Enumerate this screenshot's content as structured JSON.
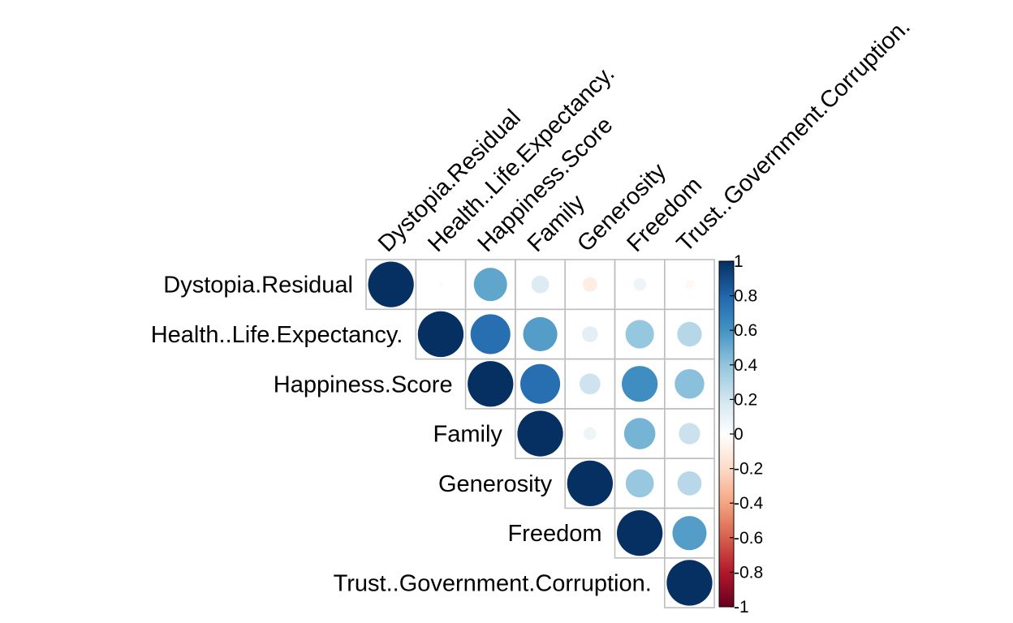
{
  "chart_data": {
    "type": "heatmap",
    "style": "corrplot-circle-upper",
    "variables": [
      "Dystopia.Residual",
      "Health..Life.Expectancy.",
      "Happiness.Score",
      "Family",
      "Generosity",
      "Freedom",
      "Trust..Government.Corruption."
    ],
    "matrix": [
      [
        1.0,
        0.02,
        0.53,
        0.15,
        -0.1,
        0.08,
        -0.04
      ],
      [
        0.02,
        1.0,
        0.76,
        0.56,
        0.12,
        0.39,
        0.29
      ],
      [
        0.53,
        0.76,
        1.0,
        0.76,
        0.21,
        0.62,
        0.42
      ],
      [
        0.15,
        0.56,
        0.76,
        1.0,
        0.08,
        0.47,
        0.22
      ],
      [
        -0.1,
        0.12,
        0.21,
        0.08,
        1.0,
        0.38,
        0.28
      ],
      [
        0.08,
        0.39,
        0.62,
        0.47,
        0.38,
        1.0,
        0.56
      ],
      [
        -0.04,
        0.29,
        0.42,
        0.22,
        0.28,
        0.56,
        1.0
      ]
    ],
    "color_scale": {
      "range": [
        -1,
        1
      ],
      "ticks": [
        "-1",
        "-0.8",
        "-0.6",
        "-0.4",
        "-0.2",
        "0",
        "0.2",
        "0.4",
        "0.6",
        "0.8",
        "1"
      ],
      "colors": [
        "#67001F",
        "#B2182B",
        "#D6604D",
        "#F4A582",
        "#FDDBC7",
        "#FFFFFF",
        "#D1E5F0",
        "#92C5DE",
        "#4393C3",
        "#2166AC",
        "#053061"
      ]
    },
    "grid_color": "#BEBEBE"
  }
}
